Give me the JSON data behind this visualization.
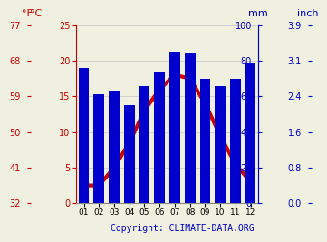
{
  "months": [
    "01",
    "02",
    "03",
    "04",
    "05",
    "06",
    "07",
    "08",
    "09",
    "10",
    "11",
    "12"
  ],
  "precipitation_mm": [
    76,
    61,
    63,
    55,
    66,
    74,
    85,
    84,
    70,
    66,
    70,
    79
  ],
  "temperature_c": [
    2.5,
    2.5,
    5.0,
    8.5,
    13.0,
    16.0,
    18.0,
    17.5,
    14.0,
    9.5,
    5.5,
    3.0
  ],
  "bar_color": "#0000cc",
  "line_color": "#cc0000",
  "left_axis_color": "#cc0000",
  "right_axis_color": "#0000cc",
  "background_color": "#f0f0e0",
  "grid_color": "#cccccc",
  "temp_ylim_c": [
    0,
    25
  ],
  "precip_ylim_mm": [
    0,
    100
  ],
  "left_ticks_c": [
    0,
    5,
    10,
    15,
    20,
    25
  ],
  "left_ticks_f": [
    32,
    41,
    50,
    59,
    68,
    77
  ],
  "right_ticks_mm": [
    0,
    20,
    40,
    60,
    80,
    100
  ],
  "right_ticks_inch": [
    "0.0",
    "0.8",
    "1.6",
    "2.4",
    "3.1",
    "3.9"
  ],
  "copyright_text": "Copyright: CLIMATE-DATA.ORG",
  "copyright_color": "#0000cc",
  "line_width": 3.0,
  "bar_width": 0.7
}
